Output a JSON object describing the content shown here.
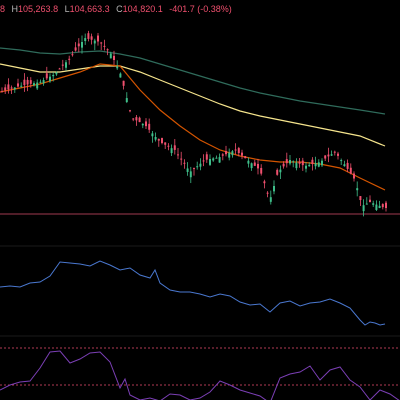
{
  "ohlc_legend": {
    "o_tail": "8",
    "h_label": "H",
    "h_value": "105,263.8",
    "l_label": "L",
    "l_value": "104,663.3",
    "c_label": "C",
    "c_value": "104,820.1",
    "change": "-401.7 (-0.38%)"
  },
  "colors": {
    "up": "#3fbf8a",
    "down": "#f0506e",
    "ma_fast": "#f6e58d",
    "ma_mid": "#d35400",
    "ma_slow": "#2f6b5b",
    "price_line": "#a13a4f",
    "indicator1": "#4a78d0",
    "indicator2": "#7b3fb5",
    "band": "#b03a55"
  }
}
